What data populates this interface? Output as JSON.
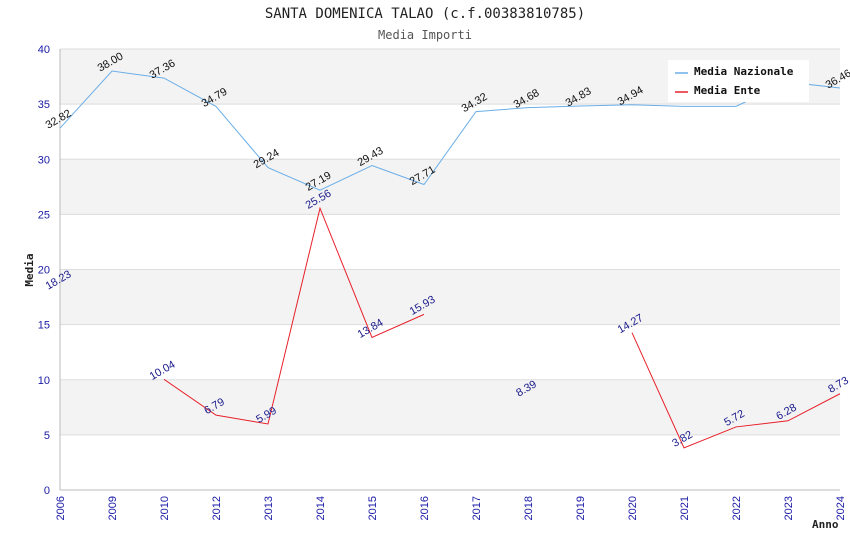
{
  "chart_data": {
    "type": "line",
    "title": "SANTA DOMENICA TALAO (c.f.00383810785)",
    "subtitle": "Media Importi",
    "ylabel": "Media",
    "xlabel": "Anno",
    "ylim": [
      0,
      40
    ],
    "yticks": [
      0,
      5,
      10,
      15,
      20,
      25,
      30,
      35,
      40
    ],
    "categories": [
      "2006",
      "2009",
      "2010",
      "2012",
      "2013",
      "2014",
      "2015",
      "2016",
      "2017",
      "2018",
      "2019",
      "2020",
      "2021",
      "2022",
      "2023",
      "2024"
    ],
    "legend_position": "top-right",
    "series": [
      {
        "name": "Media Nazionale",
        "color": "#6aaee8",
        "label_color": "#111111",
        "values": [
          32.82,
          38.0,
          37.36,
          34.79,
          29.24,
          27.19,
          29.43,
          27.71,
          34.32,
          34.68,
          34.83,
          34.94,
          34.8,
          34.8,
          37.0,
          36.46
        ],
        "labels": [
          "32.82",
          "38.00",
          "37.36",
          "34.79",
          "29.24",
          "27.19",
          "29.43",
          "27.71",
          "34.32",
          "34.68",
          "34.83",
          "34.94",
          null,
          null,
          null,
          "36.46"
        ]
      },
      {
        "name": "Media Ente",
        "color": "#e8202a",
        "label_color": "#1a1a8c",
        "values": [
          18.23,
          null,
          10.04,
          6.79,
          5.99,
          25.56,
          13.84,
          15.93,
          null,
          8.39,
          null,
          14.27,
          3.82,
          5.72,
          6.28,
          8.73
        ],
        "labels": [
          "18.23",
          null,
          "10.04",
          "6.79",
          "5.99",
          "25.56",
          "13.84",
          "15.93",
          null,
          "8.39",
          null,
          "14.27",
          "3.82",
          "5.72",
          "6.28",
          "8.73"
        ]
      }
    ]
  }
}
